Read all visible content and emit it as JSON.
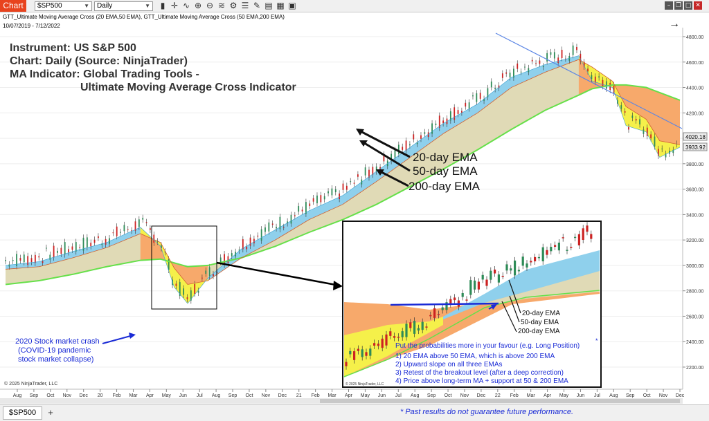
{
  "toolbar": {
    "chart_tab": "Chart",
    "instrument": "$SP500",
    "interval": "Daily",
    "icons": [
      "bar-chart-icon",
      "crosshair-icon",
      "chart-style-icon",
      "zoom-in-icon",
      "zoom-out-icon",
      "indicators-icon",
      "strategies-icon",
      "properties-icon",
      "drawing-tools-icon",
      "template-icon",
      "data-box-icon",
      "snapshot-icon"
    ]
  },
  "header": {
    "indicator_line": "GTT_Ultimate Moving Average Cross (20 EMA,50 EMA), GTT_Ultimate Moving Average Cross (50 EMA,200 EMA)",
    "date_range": "10/07/2019 - 7/12/2022"
  },
  "title_block": {
    "line1": "Instrument: US S&P 500",
    "line2": "Chart: Daily (Source: NinjaTrader)",
    "line3": "MA Indicator: Global Trading Tools -",
    "line4": "Ultimate Moving Average Cross Indicator"
  },
  "annotations": {
    "ema20": "20-day EMA",
    "ema50": "50-day EMA",
    "ema200": "200-day EMA",
    "crash_line1": "2020 Stock market crash",
    "crash_line2": "(COVID-19 pandemic",
    "crash_line3": "stock market collapse)"
  },
  "inset": {
    "ema20": "20-day EMA",
    "ema50": "50-day EMA",
    "ema200": "200-day EMA",
    "headline": "Put the probabilities more in your favour (e.g. Long Position)",
    "star": "*",
    "points": [
      "1)  20 EMA above 50 EMA, which is above 200 EMA",
      "2)  Upward slope on all three EMAs",
      "3)  Retest of the breakout level (after a deep correction)",
      "4)  Price above long-term MA + support at 50 & 200 EMA"
    ],
    "copyright": "© 2025 NinjaTrader, LLC"
  },
  "copyright": "© 2025 NinjaTrader, LLC",
  "price_tags": {
    "upper": "4020.18",
    "lower": "3933.92"
  },
  "bottom": {
    "symbol_tab": "$SP500",
    "add_tab": "+",
    "disclaimer": "*  Past results do not guarantee future performance."
  },
  "colors": {
    "ema20_band": "#8fd0ec",
    "ema50_200_band": "#e0dab6",
    "bear_band": "#f7a96b",
    "bear_fast": "#f5f04a",
    "ema200_line": "#66e04a",
    "trendline": "#5b86e5",
    "annotation_blue": "#1a2bd6"
  },
  "chart_data": {
    "type": "line",
    "ylabel": "",
    "xlabel": "",
    "ylim": [
      2100,
      4950
    ],
    "y_ticks": [
      2200,
      2400,
      2600,
      2800,
      3000,
      3200,
      3400,
      3600,
      3800,
      4000,
      4200,
      4400,
      4600,
      4800
    ],
    "x_tick_labels": [
      "Aug",
      "Sep",
      "Oct",
      "Nov",
      "Dec",
      "20",
      "Feb",
      "Mar",
      "Apr",
      "May",
      "Jun",
      "Jul",
      "Aug",
      "Sep",
      "Oct",
      "Nov",
      "Dec",
      "21",
      "Feb",
      "Mar",
      "Apr",
      "May",
      "Jun",
      "Jul",
      "Aug",
      "Sep",
      "Oct",
      "Nov",
      "Dec",
      "22",
      "Feb",
      "Mar",
      "Apr",
      "May",
      "Jun",
      "Jul",
      "Aug",
      "Sep",
      "Oct",
      "Nov",
      "Dec"
    ],
    "series": [
      {
        "name": "20-day EMA",
        "x": [
          0,
          5,
          10,
          15,
          20,
          23,
          25,
          27,
          30,
          35,
          40,
          45,
          50,
          55,
          60,
          65,
          70,
          75,
          80,
          85,
          87,
          90,
          92,
          95,
          97,
          100
        ],
        "values": [
          3000,
          3030,
          3110,
          3180,
          3300,
          3150,
          2830,
          2700,
          2900,
          3130,
          3280,
          3430,
          3550,
          3740,
          3930,
          4120,
          4270,
          4480,
          4580,
          4650,
          4450,
          4400,
          4100,
          4050,
          3850,
          3930
        ]
      },
      {
        "name": "50-day EMA",
        "x": [
          0,
          5,
          10,
          15,
          20,
          23,
          25,
          27,
          30,
          35,
          40,
          45,
          50,
          55,
          60,
          65,
          70,
          75,
          80,
          85,
          87,
          90,
          92,
          95,
          97,
          100
        ],
        "values": [
          2970,
          2990,
          3060,
          3140,
          3250,
          3180,
          2980,
          2850,
          2880,
          3060,
          3200,
          3360,
          3480,
          3660,
          3850,
          4040,
          4200,
          4400,
          4520,
          4620,
          4560,
          4450,
          4250,
          4150,
          3980,
          3950
        ]
      },
      {
        "name": "200-day EMA",
        "x": [
          0,
          5,
          10,
          15,
          20,
          23,
          25,
          27,
          30,
          35,
          40,
          45,
          50,
          55,
          60,
          65,
          70,
          75,
          80,
          85,
          87,
          90,
          92,
          95,
          97,
          100
        ],
        "values": [
          2850,
          2880,
          2930,
          2990,
          3040,
          3050,
          3020,
          2990,
          3000,
          3060,
          3150,
          3260,
          3360,
          3480,
          3620,
          3760,
          3910,
          4070,
          4220,
          4340,
          4390,
          4420,
          4420,
          4400,
          4360,
          4300
        ]
      }
    ]
  }
}
